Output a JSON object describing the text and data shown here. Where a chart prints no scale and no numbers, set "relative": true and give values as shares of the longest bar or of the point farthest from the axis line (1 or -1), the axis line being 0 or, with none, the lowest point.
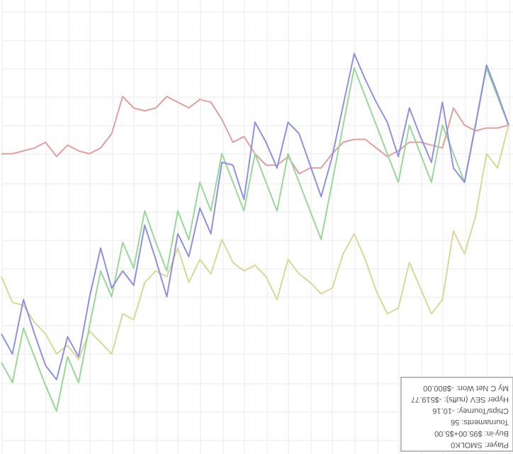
{
  "chart_data": {
    "type": "line",
    "relative": true,
    "grid": true,
    "marker": "none",
    "line_style": "solid",
    "categories": [
      null,
      null,
      null,
      null,
      null,
      null,
      null,
      null,
      null,
      null,
      null,
      null,
      null,
      null,
      null,
      null,
      null,
      null,
      null,
      null,
      null,
      null,
      null,
      null,
      null,
      null,
      null,
      null,
      null,
      null,
      null,
      null,
      null,
      null,
      null,
      null,
      null,
      null,
      null,
      null,
      null,
      null,
      null,
      null,
      null,
      null,
      null
    ],
    "series": [
      {
        "color": "#e0a0a0",
        "values": [
          -0.1,
          -0.1,
          -0.09,
          -0.08,
          -0.06,
          -0.11,
          -0.07,
          -0.09,
          -0.1,
          -0.08,
          -0.03,
          0.1,
          0.06,
          0.05,
          0.06,
          0.1,
          0.08,
          0.06,
          0.09,
          0.08,
          0.02,
          -0.06,
          -0.04,
          -0.1,
          -0.14,
          -0.14,
          -0.11,
          -0.17,
          -0.15,
          -0.15,
          -0.1,
          -0.06,
          -0.05,
          -0.05,
          -0.08,
          -0.11,
          -0.09,
          -0.06,
          -0.06,
          -0.07,
          -0.08,
          0.06,
          0.0,
          -0.02,
          -0.01,
          -0.01,
          0
        ]
      },
      {
        "color": "#d8d898",
        "values": [
          -0.53,
          -0.62,
          -0.63,
          -0.69,
          -0.73,
          -0.8,
          -0.77,
          -0.82,
          -0.72,
          -0.76,
          -0.8,
          -0.66,
          -0.68,
          -0.55,
          -0.51,
          -0.53,
          -0.43,
          -0.55,
          -0.47,
          -0.52,
          -0.4,
          -0.48,
          -0.51,
          -0.49,
          -0.53,
          -0.61,
          -0.47,
          -0.52,
          -0.55,
          -0.59,
          -0.57,
          -0.45,
          -0.38,
          -0.47,
          -0.58,
          -0.66,
          -0.64,
          -0.48,
          -0.57,
          -0.66,
          -0.61,
          -0.37,
          -0.45,
          -0.32,
          -0.1,
          -0.15,
          0
        ]
      },
      {
        "color": "#98d898",
        "values": [
          -0.83,
          -0.9,
          -0.71,
          -0.81,
          -0.91,
          -1,
          -0.81,
          -0.9,
          -0.7,
          -0.51,
          -0.6,
          -0.41,
          -0.5,
          -0.3,
          -0.41,
          -0.51,
          -0.3,
          -0.4,
          -0.2,
          -0.3,
          -0.1,
          -0.2,
          -0.3,
          -0.1,
          -0.2,
          -0.3,
          -0.1,
          -0.2,
          -0.3,
          -0.4,
          -0.2,
          0.0,
          0.2,
          0.1,
          0.0,
          -0.1,
          -0.2,
          0.0,
          -0.1,
          -0.2,
          0.0,
          -0.1,
          -0.2,
          0.0,
          0.2,
          0.1,
          0
        ]
      },
      {
        "color": "#9090e0",
        "values": [
          -0.73,
          -0.8,
          -0.61,
          -0.73,
          -0.84,
          -0.89,
          -0.74,
          -0.81,
          -0.6,
          -0.43,
          -0.57,
          -0.51,
          -0.56,
          -0.35,
          -0.47,
          -0.6,
          -0.38,
          -0.46,
          -0.29,
          -0.38,
          -0.13,
          -0.14,
          -0.26,
          0.01,
          -0.06,
          -0.15,
          0.01,
          -0.03,
          -0.14,
          -0.25,
          -0.11,
          0.07,
          0.25,
          0.16,
          0.08,
          0.01,
          -0.11,
          0.06,
          -0.04,
          -0.13,
          0.08,
          -0.15,
          -0.2,
          0.0,
          0.21,
          0.11,
          0
        ]
      }
    ],
    "annotations": [
      "Player: SMOLK0",
      "Buy-in: $95.00+$5.00",
      "Tournaments: 56",
      "Chips/Tourney: -10.16",
      "Hyper SEV (nuffs): -$519.77",
      "My C Net Won: -$800.00"
    ]
  }
}
